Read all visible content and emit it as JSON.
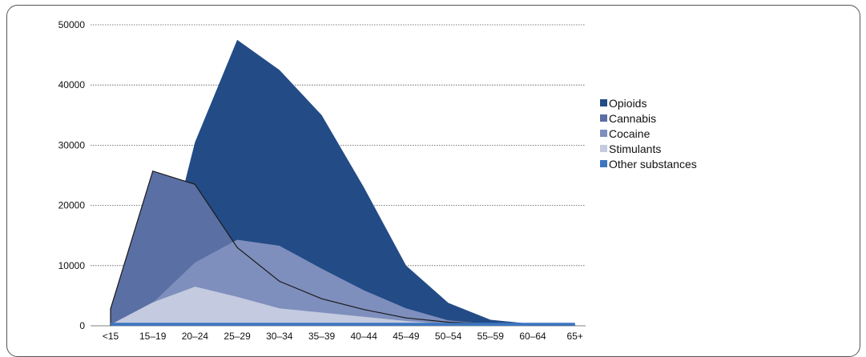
{
  "chart_data": {
    "type": "area",
    "title": "",
    "xlabel": "",
    "ylabel": "",
    "categories": [
      "<15",
      "15–19",
      "20–24",
      "25–29",
      "30–34",
      "35–39",
      "40–44",
      "45–49",
      "50–54",
      "55–59",
      "60–64",
      "65+"
    ],
    "yticks": [
      "0",
      "10000",
      "20000",
      "30000",
      "40000",
      "50000"
    ],
    "ylim": [
      0,
      50000
    ],
    "grid": "horizontal dotted",
    "legend_position": "right",
    "series": [
      {
        "name": "Opioids",
        "color": "#234b86",
        "values": [
          null,
          null,
          30500,
          47500,
          42500,
          35000,
          23000,
          10000,
          3800,
          1000,
          300,
          300
        ]
      },
      {
        "name": "Cannabis",
        "color": "#5a6fa4",
        "values": [
          2800,
          25700,
          23500,
          13000,
          7400,
          4500,
          2700,
          1300,
          600,
          300,
          200,
          200
        ]
      },
      {
        "name": "Cocaine",
        "color": "#7e8fbd",
        "values": [
          null,
          3800,
          10500,
          14300,
          13300,
          9500,
          5900,
          2900,
          900,
          300,
          200,
          200
        ]
      },
      {
        "name": "Stimulants",
        "color": "#c4cadf",
        "values": [
          200,
          3900,
          6500,
          4800,
          2900,
          2200,
          1500,
          800,
          300,
          200,
          100,
          100
        ]
      },
      {
        "name": "Other substances",
        "color": "#3d76c0",
        "values": [
          300,
          300,
          300,
          300,
          300,
          300,
          300,
          300,
          300,
          300,
          300,
          300
        ]
      }
    ]
  }
}
